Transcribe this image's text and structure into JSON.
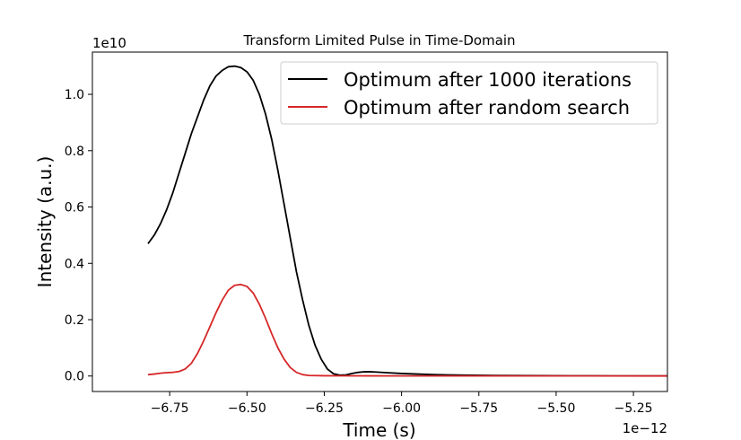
{
  "chart_data": {
    "type": "line",
    "title": "Transform Limited Pulse in Time-Domain",
    "xlabel": "Time (s)",
    "ylabel": "Intensity (a.u.)",
    "x_offset_label": "1e−12",
    "y_offset_label": "1e10",
    "xlim": [
      -7.0,
      -5.14
    ],
    "ylim": [
      -0.055,
      1.15
    ],
    "x_ticks": [
      -6.75,
      -6.5,
      -6.25,
      -6.0,
      -5.75,
      -5.5,
      -5.25
    ],
    "x_tick_labels": [
      "−6.75",
      "−6.50",
      "−6.25",
      "−6.00",
      "−5.75",
      "−5.50",
      "−5.25"
    ],
    "y_ticks": [
      0.0,
      0.2,
      0.4,
      0.6,
      0.8,
      1.0
    ],
    "y_tick_labels": [
      "0.0",
      "0.2",
      "0.4",
      "0.6",
      "0.8",
      "1.0"
    ],
    "grid": false,
    "legend_position": "top-right",
    "series": [
      {
        "name": "Optimum after 1000 iterations",
        "color": "#000000",
        "points": [
          [
            -6.82,
            0.47
          ],
          [
            -6.8,
            0.5
          ],
          [
            -6.78,
            0.54
          ],
          [
            -6.76,
            0.59
          ],
          [
            -6.74,
            0.65
          ],
          [
            -6.72,
            0.72
          ],
          [
            -6.7,
            0.79
          ],
          [
            -6.68,
            0.86
          ],
          [
            -6.66,
            0.92
          ],
          [
            -6.64,
            0.98
          ],
          [
            -6.62,
            1.03
          ],
          [
            -6.6,
            1.065
          ],
          [
            -6.58,
            1.085
          ],
          [
            -6.56,
            1.098
          ],
          [
            -6.54,
            1.1
          ],
          [
            -6.52,
            1.095
          ],
          [
            -6.5,
            1.08
          ],
          [
            -6.48,
            1.05
          ],
          [
            -6.46,
            1.0
          ],
          [
            -6.44,
            0.93
          ],
          [
            -6.42,
            0.84
          ],
          [
            -6.4,
            0.73
          ],
          [
            -6.38,
            0.61
          ],
          [
            -6.36,
            0.49
          ],
          [
            -6.34,
            0.37
          ],
          [
            -6.32,
            0.27
          ],
          [
            -6.3,
            0.18
          ],
          [
            -6.28,
            0.11
          ],
          [
            -6.26,
            0.06
          ],
          [
            -6.24,
            0.025
          ],
          [
            -6.22,
            0.008
          ],
          [
            -6.2,
            0.003
          ],
          [
            -6.18,
            0.004
          ],
          [
            -6.16,
            0.009
          ],
          [
            -6.14,
            0.013
          ],
          [
            -6.12,
            0.015
          ],
          [
            -6.1,
            0.015
          ],
          [
            -6.08,
            0.014
          ],
          [
            -6.05,
            0.012
          ],
          [
            -6.0,
            0.009
          ],
          [
            -5.95,
            0.007
          ],
          [
            -5.9,
            0.005
          ],
          [
            -5.85,
            0.004
          ],
          [
            -5.8,
            0.003
          ],
          [
            -5.7,
            0.002
          ],
          [
            -5.6,
            0.0015
          ],
          [
            -5.5,
            0.001
          ],
          [
            -5.4,
            0.0007
          ],
          [
            -5.3,
            0.0005
          ],
          [
            -5.14,
            0.0003
          ]
        ]
      },
      {
        "name": "Optimum after random search",
        "color": "#d62728",
        "points": [
          [
            -6.82,
            0.005
          ],
          [
            -6.8,
            0.007
          ],
          [
            -6.78,
            0.01
          ],
          [
            -6.76,
            0.012
          ],
          [
            -6.74,
            0.013
          ],
          [
            -6.72,
            0.016
          ],
          [
            -6.7,
            0.025
          ],
          [
            -6.68,
            0.045
          ],
          [
            -6.66,
            0.08
          ],
          [
            -6.64,
            0.125
          ],
          [
            -6.62,
            0.175
          ],
          [
            -6.6,
            0.225
          ],
          [
            -6.58,
            0.27
          ],
          [
            -6.56,
            0.305
          ],
          [
            -6.54,
            0.322
          ],
          [
            -6.52,
            0.325
          ],
          [
            -6.5,
            0.318
          ],
          [
            -6.48,
            0.295
          ],
          [
            -6.46,
            0.255
          ],
          [
            -6.44,
            0.205
          ],
          [
            -6.42,
            0.15
          ],
          [
            -6.4,
            0.1
          ],
          [
            -6.38,
            0.06
          ],
          [
            -6.36,
            0.03
          ],
          [
            -6.34,
            0.013
          ],
          [
            -6.32,
            0.005
          ],
          [
            -6.3,
            0.002
          ],
          [
            -6.25,
            0.001
          ],
          [
            -6.2,
            0.0008
          ],
          [
            -6.1,
            0.0006
          ],
          [
            -6.0,
            0.0005
          ],
          [
            -5.8,
            0.0004
          ],
          [
            -5.6,
            0.0003
          ],
          [
            -5.4,
            0.0003
          ],
          [
            -5.14,
            0.0002
          ]
        ]
      }
    ]
  }
}
